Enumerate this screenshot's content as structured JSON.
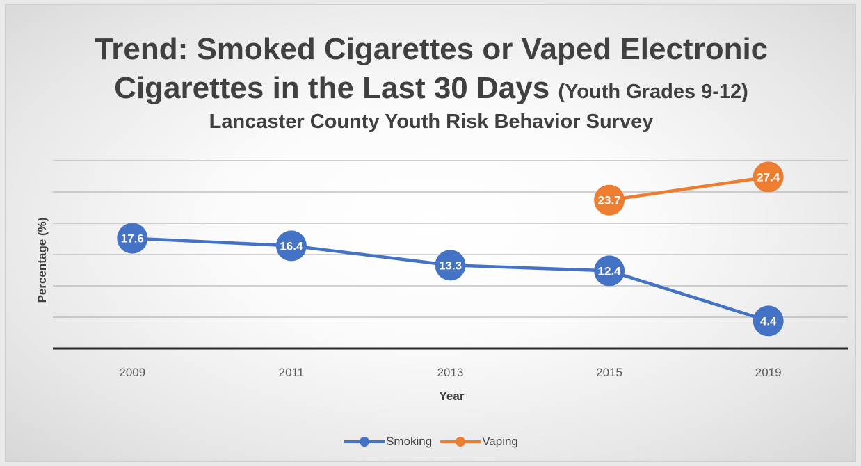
{
  "chart_data": {
    "type": "line",
    "title_line1": "Trend: Smoked Cigarettes or Vaped Electronic",
    "title_line2": "Cigarettes in the Last 30 Days",
    "title_line2_suffix": "(Youth Grades 9-12)",
    "subtitle": "Lancaster County Youth Risk Behavior Survey",
    "xlabel": "Year",
    "ylabel": "Percentage (%)",
    "categories": [
      "2009",
      "2011",
      "2013",
      "2015",
      "2019"
    ],
    "ylim": [
      0,
      30
    ],
    "grid": true,
    "legend_position": "bottom",
    "series": [
      {
        "name": "Smoking",
        "color": "#4472c4",
        "values": [
          17.6,
          16.4,
          13.3,
          12.4,
          4.4
        ]
      },
      {
        "name": "Vaping",
        "color": "#ed7d31",
        "values": [
          null,
          null,
          null,
          23.7,
          27.4
        ]
      }
    ]
  }
}
